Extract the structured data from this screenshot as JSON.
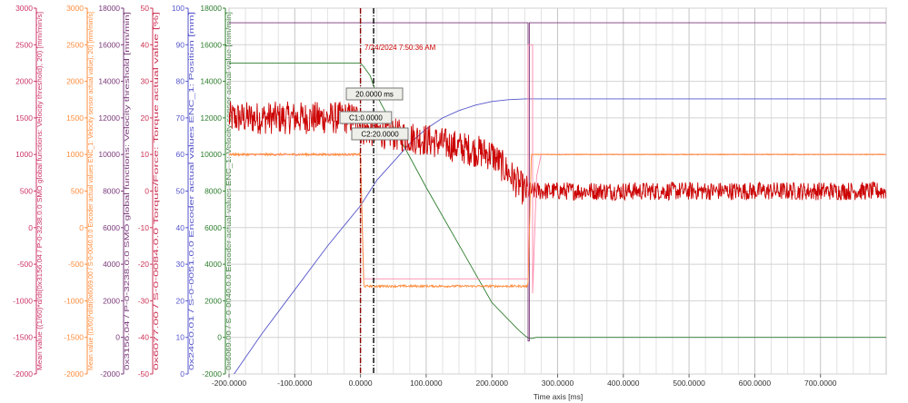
{
  "chart_data": {
    "type": "line",
    "x": {
      "label": "Time axis [ms]",
      "min": -200,
      "max": 800,
      "ticks": [
        -200,
        -100,
        0,
        100,
        200,
        300,
        400,
        500,
        600,
        700
      ],
      "tick_labels": [
        "-200.0000",
        "-100.0000",
        "0.0000",
        "100.0000",
        "200.0000",
        "300.0000",
        "400.0000",
        "500.0000",
        "600.0000",
        "700.0000"
      ]
    },
    "y_axes": [
      {
        "id": "ax1",
        "color": "#cc3366",
        "min": -2000,
        "max": 3000,
        "ticks": [
          -2000,
          -1500,
          -1000,
          -500,
          0,
          500,
          1000,
          1500,
          2000,
          2500,
          3000
        ],
        "label": "Mean value ((1/60)*d/dt(0x3156.04 / P-0-3238.0.0 SMO global functions: Velocity threshold), 20) [mm/min/s]"
      },
      {
        "id": "ax2",
        "color": "#ff8c3c",
        "min": -2000,
        "max": 3000,
        "ticks": [
          -2000,
          -1500,
          -1000,
          -500,
          0,
          500,
          1000,
          1500,
          2000,
          2500,
          3000
        ],
        "label": "Mean value ((1/60)*d/dt(0x6069.00 / S-0-0040.0.0 Encoder actual values ENC_1: Velocity sensor actual value), 20) [mm/min/s]"
      },
      {
        "id": "ax3",
        "color": "#7a3a7a",
        "min": -2000,
        "max": 18000,
        "ticks": [
          -2000,
          0,
          2000,
          4000,
          6000,
          8000,
          10000,
          12000,
          14000,
          16000,
          18000
        ],
        "label": "0x3156.04 / P-0-3238.0.0 SMO global functions: Velocity threshold [mm/min]"
      },
      {
        "id": "ax4",
        "color": "#cc3355",
        "min": -50,
        "max": 50,
        "ticks": [
          -50,
          -40,
          -30,
          -20,
          -10,
          0,
          10,
          20,
          30,
          40,
          50
        ],
        "label": "0x6077.00 / S-0-0084.0.0 Torque/Force: Torque actual value [%]"
      },
      {
        "id": "ax5",
        "color": "#5555cc",
        "min": 0,
        "max": 100,
        "ticks": [
          0,
          10,
          20,
          30,
          40,
          50,
          60,
          70,
          80,
          90,
          100
        ],
        "label": "0x24C0.01 / S-0-0051.0.0 Encoder actual values ENC_1: Position [mm]"
      },
      {
        "id": "ax6",
        "color": "#2e7d2e",
        "min": -2000,
        "max": 18000,
        "ticks": [
          -2000,
          0,
          2000,
          4000,
          6000,
          8000,
          10000,
          12000,
          14000,
          16000,
          18000
        ],
        "label": "0x6069.00 / S-0-0040.0.0 Encoder actual values ENC_1: Velocity sensor actual value [mm/min]"
      }
    ],
    "series": [
      {
        "axis": "ax6",
        "color": "#2e7d2e",
        "points": [
          [
            -200,
            15000
          ],
          [
            0,
            15000
          ],
          [
            5,
            14800
          ],
          [
            15,
            14300
          ],
          [
            25,
            13200
          ],
          [
            100,
            8200
          ],
          [
            200,
            1900
          ],
          [
            240,
            420
          ],
          [
            250,
            100
          ],
          [
            255,
            -30
          ],
          [
            260,
            -60
          ],
          [
            268,
            0
          ],
          [
            800,
            0
          ]
        ]
      },
      {
        "axis": "ax5",
        "color": "#5555cc",
        "points": [
          [
            -200,
            -2
          ],
          [
            -150,
            11
          ],
          [
            -100,
            23
          ],
          [
            -50,
            35
          ],
          [
            0,
            46
          ],
          [
            25,
            53
          ],
          [
            50,
            58
          ],
          [
            75,
            63
          ],
          [
            100,
            67
          ],
          [
            125,
            70
          ],
          [
            150,
            72
          ],
          [
            175,
            73.5
          ],
          [
            200,
            74.5
          ],
          [
            225,
            75
          ],
          [
            250,
            75.2
          ],
          [
            800,
            75.2
          ]
        ]
      },
      {
        "axis": "ax3",
        "color": "#7a3a7a",
        "points": [
          [
            -200,
            17200
          ],
          [
            255,
            17200
          ],
          [
            255,
            -200
          ],
          [
            257,
            -200
          ],
          [
            257,
            17200
          ],
          [
            800,
            17200
          ]
        ]
      },
      {
        "axis": "ax4",
        "color": "#cc0000",
        "noise": [
          4.5,
          2.5
        ],
        "points": [
          [
            -200,
            20
          ],
          [
            -1,
            20
          ],
          [
            0,
            17
          ],
          [
            100,
            14
          ],
          [
            200,
            10
          ],
          [
            250,
            0
          ],
          [
            800,
            0
          ]
        ]
      },
      {
        "axis": "ax1",
        "color": "#ff88aa",
        "points": [
          [
            -200,
            1000
          ],
          [
            0,
            1000
          ],
          [
            5,
            -700
          ],
          [
            25,
            -700
          ],
          [
            255,
            -700
          ],
          [
            255,
            2500
          ],
          [
            262,
            2500
          ],
          [
            262,
            -900
          ],
          [
            268,
            700
          ],
          [
            275,
            1000
          ],
          [
            800,
            1000
          ]
        ]
      },
      {
        "axis": "ax2",
        "color": "#ff8c3c",
        "noise": [
          15,
          0
        ],
        "points": [
          [
            -200,
            1000
          ],
          [
            0,
            1000
          ],
          [
            5,
            -800
          ],
          [
            255,
            -800
          ],
          [
            260,
            1000
          ],
          [
            800,
            1000
          ]
        ]
      }
    ],
    "cursors": [
      {
        "x": 0,
        "label": "C1:0.0000",
        "color": "#8b0000"
      },
      {
        "x": 20,
        "label": "C2:20.0000",
        "color": "#000000"
      }
    ],
    "delta_label": "20.0000 ms",
    "timestamp": "7/24/2024 7:50:36 AM",
    "grid": true
  }
}
